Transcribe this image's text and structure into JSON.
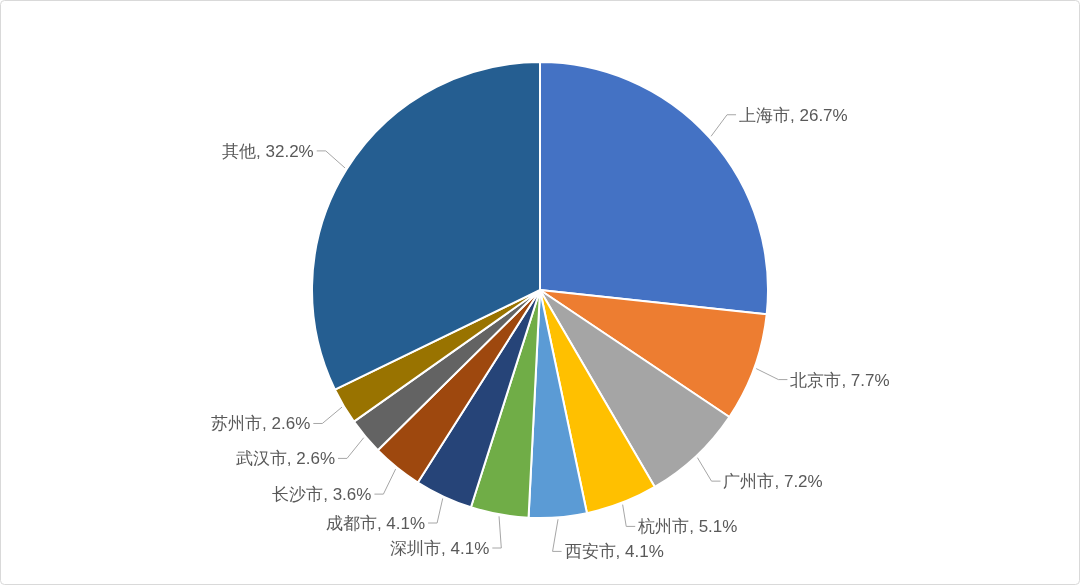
{
  "chart_data": {
    "type": "pie",
    "categories": [
      "上海市",
      "北京市",
      "广州市",
      "杭州市",
      "西安市",
      "深圳市",
      "成都市",
      "长沙市",
      "武汉市",
      "苏州市",
      "其他"
    ],
    "values": [
      26.7,
      7.7,
      7.2,
      5.1,
      4.1,
      4.1,
      4.1,
      3.6,
      2.6,
      2.6,
      32.2
    ],
    "colors": [
      "#4472c4",
      "#ed7d31",
      "#a5a5a5",
      "#ffc000",
      "#5b9bd5",
      "#70ad47",
      "#264478",
      "#9e480e",
      "#636363",
      "#997300",
      "#255e91"
    ],
    "value_labels": [
      "26.7%",
      "7.7%",
      "7.2%",
      "5.1%",
      "4.1%",
      "4.1%",
      "4.1%",
      "3.6%",
      "2.6%",
      "2.6%",
      "32.2%"
    ]
  }
}
